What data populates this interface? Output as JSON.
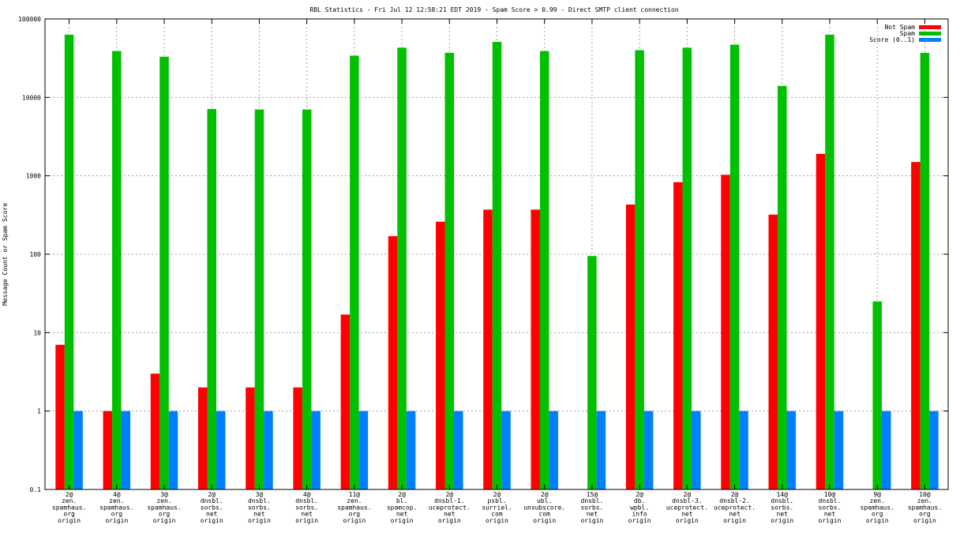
{
  "chart_data": {
    "type": "bar",
    "title": "RBL Statistics - Fri Jul 12 12:58:21 EDT 2019 - Spam Score > 0.99 - Direct SMTP client connection",
    "ylabel": "Message Count or Spam Score",
    "xlabel": "",
    "yscale": "log",
    "ylim": [
      0.1,
      100000
    ],
    "yticks": [
      "0.1",
      "1",
      "10",
      "100",
      "1000",
      "10000",
      "100000"
    ],
    "grid": true,
    "legend_position": "top-right",
    "categories": [
      [
        "2@",
        "zen.",
        "spamhaus.",
        "org",
        "origin"
      ],
      [
        "4@",
        "zen.",
        "spamhaus.",
        "org",
        "origin"
      ],
      [
        "3@",
        "zen.",
        "spamhaus.",
        "org",
        "origin"
      ],
      [
        "2@",
        "dnsbl.",
        "sorbs.",
        "net",
        "origin"
      ],
      [
        "3@",
        "dnsbl.",
        "sorbs.",
        "net",
        "origin"
      ],
      [
        "4@",
        "dnsbl.",
        "sorbs.",
        "net",
        "origin"
      ],
      [
        "11@",
        "zen.",
        "spamhaus.",
        "org",
        "origin"
      ],
      [
        "2@",
        "bl.",
        "spamcop.",
        "net",
        "origin"
      ],
      [
        "2@",
        "dnsbl-1.",
        "uceprotect.",
        "net",
        "origin"
      ],
      [
        "2@",
        "psbl.",
        "surriel.",
        "com",
        "origin"
      ],
      [
        "2@",
        "ubl.",
        "unsubscore.",
        "com",
        "origin"
      ],
      [
        "15@",
        "dnsbl.",
        "sorbs.",
        "net",
        "origin"
      ],
      [
        "2@",
        "db.",
        "wpbl.",
        "info",
        "origin"
      ],
      [
        "2@",
        "dnsbl-3.",
        "uceprotect.",
        "net",
        "origin"
      ],
      [
        "2@",
        "dnsbl-2.",
        "uceprotect.",
        "net",
        "origin"
      ],
      [
        "14@",
        "dnsbl.",
        "sorbs.",
        "net",
        "origin"
      ],
      [
        "10@",
        "dnsbl.",
        "sorbs.",
        "net",
        "origin"
      ],
      [
        "9@",
        "zen.",
        "spamhaus.",
        "org",
        "origin"
      ],
      [
        "10@",
        "zen.",
        "spamhaus.",
        "org",
        "origin"
      ]
    ],
    "series": [
      {
        "name": "Not Spam",
        "color": "#ff0000",
        "values": [
          7,
          1,
          3,
          2,
          2,
          2,
          17,
          170,
          260,
          370,
          370,
          null,
          430,
          830,
          1030,
          320,
          1900,
          null,
          1500
        ]
      },
      {
        "name": "Spam",
        "color": "#00c000",
        "values": [
          63000,
          39000,
          33000,
          7100,
          7000,
          7000,
          34000,
          43000,
          37000,
          51000,
          39000,
          95,
          40000,
          43000,
          47000,
          14000,
          63000,
          25,
          37000
        ]
      },
      {
        "name": "Score (0..1)",
        "color": "#0080ff",
        "values": [
          1,
          1,
          1,
          1,
          1,
          1,
          1,
          1,
          1,
          1,
          1,
          1,
          1,
          1,
          1,
          1,
          1,
          1,
          1
        ]
      }
    ]
  }
}
